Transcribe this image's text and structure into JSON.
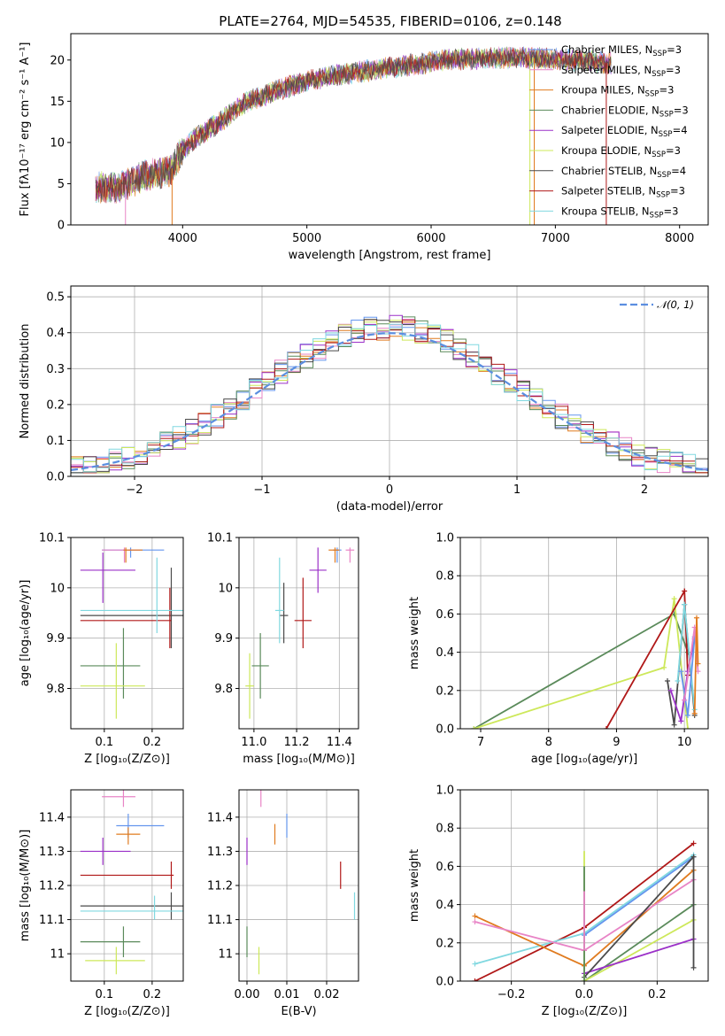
{
  "figure_title": "PLATE=2764, MJD=54535, FIBERID=0106, z=0.148",
  "colors": {
    "chabrier_miles": "#6495ed",
    "salpeter_miles": "#e884c6",
    "kroupa_miles": "#e07b1f",
    "chabrier_elodie": "#5a8a5a",
    "salpeter_elodie": "#9b30c8",
    "kroupa_elodie": "#cde85a",
    "chabrier_stelib": "#4a4a4a",
    "salpeter_stelib": "#b01818",
    "kroupa_stelib": "#80d8e0",
    "gaussian": "#5b8ee0",
    "grid": "#b0b0b0"
  },
  "chart_data": [
    {
      "id": "spectrum",
      "type": "line",
      "xlabel": "wavelength [Angstrom, rest frame]",
      "ylabel": "Flux [fλ10⁻¹⁷ erg cm⁻² s⁻¹ A⁻¹]",
      "xlim": [
        3100,
        8230
      ],
      "ylim": [
        0,
        23.2
      ],
      "xticks": [
        4000,
        5000,
        6000,
        7000,
        8000
      ],
      "yticks": [
        0,
        5,
        10,
        15,
        20
      ],
      "grid": false,
      "legend_placement": "top-right",
      "legend": [
        {
          "key": "chabrier_miles",
          "label": "Chabrier MILES, N",
          "sub": "SSP",
          "tail": "=3"
        },
        {
          "key": "salpeter_miles",
          "label": "Salpeter MILES, N",
          "sub": "SSP",
          "tail": "=3"
        },
        {
          "key": "kroupa_miles",
          "label": "Kroupa MILES, N",
          "sub": "SSP",
          "tail": "=3"
        },
        {
          "key": "chabrier_elodie",
          "label": "Chabrier ELODIE, N",
          "sub": "SSP",
          "tail": "=3"
        },
        {
          "key": "salpeter_elodie",
          "label": "Salpeter ELODIE, N",
          "sub": "SSP",
          "tail": "=4"
        },
        {
          "key": "kroupa_elodie",
          "label": "Kroupa ELODIE, N",
          "sub": "SSP",
          "tail": "=3"
        },
        {
          "key": "chabrier_stelib",
          "label": "Chabrier STELIB, N",
          "sub": "SSP",
          "tail": "=4"
        },
        {
          "key": "salpeter_stelib",
          "label": "Salpeter STELIB, N",
          "sub": "SSP",
          "tail": "=3"
        },
        {
          "key": "kroupa_stelib",
          "label": "Kroupa STELIB, N",
          "sub": "SSP",
          "tail": "=3"
        }
      ],
      "continuum": {
        "x": [
          3300,
          3500,
          3700,
          3900,
          4000,
          4100,
          4300,
          4500,
          4700,
          5000,
          5300,
          5600,
          5900,
          6100,
          6400,
          6700,
          7000,
          7300,
          7450
        ],
        "y": [
          4.5,
          4.6,
          6.0,
          6.5,
          9.0,
          10.5,
          12.5,
          14.8,
          16.0,
          17.5,
          18.3,
          19.0,
          19.5,
          20.0,
          20.2,
          20.3,
          20.1,
          19.8,
          19.6
        ]
      },
      "data_range": [
        3300,
        7450
      ],
      "drops": [
        {
          "x": 3540,
          "key": "salpeter_miles"
        },
        {
          "x": 3915,
          "key": "kroupa_miles"
        },
        {
          "x": 6795,
          "key": "kroupa_elodie"
        },
        {
          "x": 6830,
          "key": "kroupa_miles"
        },
        {
          "x": 7410,
          "key": "salpeter_stelib"
        }
      ]
    },
    {
      "id": "residuals",
      "type": "histogram",
      "xlabel": "(data-model)/error",
      "ylabel": "Normed distribution",
      "xlim": [
        -2.5,
        2.5
      ],
      "ylim": [
        0,
        0.53
      ],
      "xticks": [
        -2,
        -1,
        0,
        1,
        2
      ],
      "xtick_labels": [
        "−2",
        "−1",
        "0",
        "1",
        "2"
      ],
      "yticks": [
        0.0,
        0.1,
        0.2,
        0.3,
        0.4,
        0.5
      ],
      "ytick_labels": [
        "0.0",
        "0.1",
        "0.2",
        "0.3",
        "0.4",
        "0.5"
      ],
      "grid": true,
      "legend_placement": "top-right",
      "gaussian_label": "𝒩(0, 1)",
      "bin_width": 0.1
    },
    {
      "id": "age_vs_Z",
      "type": "scatter",
      "xlabel": "Z [log₁₀(Z/Z⊙)]",
      "ylabel": "age  [log₁₀(age/yr)]",
      "xlim": [
        0.03,
        0.265
      ],
      "ylim": [
        9.72,
        10.1
      ],
      "xticks": [
        0.1,
        0.2
      ],
      "yticks": [
        9.8,
        9.9,
        10.0,
        10.1
      ],
      "grid": true,
      "points": [
        {
          "key": "chabrier_miles",
          "x": 0.155,
          "xerr": [
            0.095,
            0.225
          ],
          "y": 10.075,
          "yerr": [
            10.06,
            10.08
          ]
        },
        {
          "key": "salpeter_miles",
          "x": 0.142,
          "xerr": [
            0.095,
            0.175
          ],
          "y": 10.075,
          "yerr": [
            10.05,
            10.08
          ]
        },
        {
          "key": "kroupa_miles",
          "x": 0.145,
          "xerr": [
            0.14,
            0.18
          ],
          "y": 10.075,
          "yerr": [
            10.05,
            10.08
          ]
        },
        {
          "key": "chabrier_elodie",
          "x": 0.14,
          "xerr": [
            0.05,
            0.175
          ],
          "y": 9.845,
          "yerr": [
            9.78,
            9.92
          ]
        },
        {
          "key": "salpeter_elodie",
          "x": 0.097,
          "xerr": [
            0.05,
            0.165
          ],
          "y": 10.035,
          "yerr": [
            9.97,
            10.07
          ]
        },
        {
          "key": "kroupa_elodie",
          "x": 0.125,
          "xerr": [
            0.05,
            0.185
          ],
          "y": 9.805,
          "yerr": [
            9.74,
            9.89
          ]
        },
        {
          "key": "chabrier_stelib",
          "x": 0.24,
          "xerr": [
            0.05,
            0.265
          ],
          "y": 9.945,
          "yerr": [
            9.88,
            10.04
          ]
        },
        {
          "key": "salpeter_stelib",
          "x": 0.237,
          "xerr": [
            0.05,
            0.24
          ],
          "y": 9.935,
          "yerr": [
            9.88,
            10.0
          ]
        },
        {
          "key": "kroupa_stelib",
          "x": 0.21,
          "xerr": [
            0.05,
            0.265
          ],
          "y": 9.955,
          "yerr": [
            9.91,
            10.06
          ]
        }
      ]
    },
    {
      "id": "age_vs_mass",
      "type": "scatter",
      "xlabel": "mass [log₁₀(M/M⊙)]",
      "ylabel": "",
      "xlim": [
        10.93,
        11.49
      ],
      "ylim": [
        9.72,
        10.1
      ],
      "xticks": [
        11.0,
        11.2,
        11.4
      ],
      "xtick_labels": [
        "11.0",
        "11.2",
        "11.4"
      ],
      "yticks": [
        9.8,
        9.9,
        10.0,
        10.1
      ],
      "grid": true,
      "points": [
        {
          "key": "chabrier_miles",
          "x": 11.39,
          "xerr": [
            11.37,
            11.41
          ],
          "y": 10.075,
          "yerr": [
            10.05,
            10.08
          ]
        },
        {
          "key": "salpeter_miles",
          "x": 11.45,
          "xerr": [
            11.43,
            11.47
          ],
          "y": 10.075,
          "yerr": [
            10.05,
            10.08
          ]
        },
        {
          "key": "kroupa_miles",
          "x": 11.38,
          "xerr": [
            11.35,
            11.4
          ],
          "y": 10.075,
          "yerr": [
            10.05,
            10.08
          ]
        },
        {
          "key": "chabrier_elodie",
          "x": 11.03,
          "xerr": [
            10.99,
            11.07
          ],
          "y": 9.845,
          "yerr": [
            9.78,
            9.91
          ]
        },
        {
          "key": "salpeter_elodie",
          "x": 11.3,
          "xerr": [
            11.26,
            11.34
          ],
          "y": 10.035,
          "yerr": [
            9.99,
            10.08
          ]
        },
        {
          "key": "kroupa_elodie",
          "x": 10.98,
          "xerr": [
            10.96,
            11.0
          ],
          "y": 9.805,
          "yerr": [
            9.74,
            9.87
          ]
        },
        {
          "key": "chabrier_stelib",
          "x": 11.14,
          "xerr": [
            11.12,
            11.16
          ],
          "y": 9.945,
          "yerr": [
            9.89,
            10.01
          ]
        },
        {
          "key": "salpeter_stelib",
          "x": 11.23,
          "xerr": [
            11.19,
            11.27
          ],
          "y": 9.935,
          "yerr": [
            9.88,
            10.02
          ]
        },
        {
          "key": "kroupa_stelib",
          "x": 11.12,
          "xerr": [
            11.1,
            11.14
          ],
          "y": 9.955,
          "yerr": [
            9.89,
            10.06
          ]
        }
      ]
    },
    {
      "id": "massweight_vs_age",
      "type": "line",
      "xlabel": "age  [log₁₀(age/yr)]",
      "ylabel": "mass weight",
      "xlim": [
        6.7,
        10.35
      ],
      "ylim": [
        0,
        1.0
      ],
      "xticks": [
        7,
        8,
        9,
        10
      ],
      "yticks": [
        0.0,
        0.2,
        0.4,
        0.6,
        0.8,
        1.0
      ],
      "ytick_labels": [
        "0.0",
        "0.2",
        "0.4",
        "0.6",
        "0.8",
        "1.0"
      ],
      "grid": true,
      "series": [
        {
          "key": "chabrier_elodie",
          "x": [
            6.9,
            9.85,
            10.05
          ],
          "y": [
            0.0,
            0.6,
            0.4
          ]
        },
        {
          "key": "kroupa_elodie",
          "x": [
            6.9,
            9.7,
            9.85,
            10.05
          ],
          "y": [
            0.0,
            0.32,
            0.68,
            0.0
          ]
        },
        {
          "key": "salpeter_stelib",
          "x": [
            8.85,
            10.0,
            10.05
          ],
          "y": [
            0.0,
            0.72,
            0.28
          ]
        },
        {
          "key": "chabrier_stelib",
          "x": [
            9.75,
            9.85,
            10.0,
            10.15
          ],
          "y": [
            0.25,
            0.02,
            0.65,
            0.07
          ]
        },
        {
          "key": "salpeter_elodie",
          "x": [
            9.8,
            9.95,
            10.05,
            10.15
          ],
          "y": [
            0.2,
            0.04,
            0.3,
            0.47
          ]
        },
        {
          "key": "kroupa_stelib",
          "x": [
            9.9,
            10.0,
            10.15
          ],
          "y": [
            0.25,
            0.65,
            0.1
          ]
        },
        {
          "key": "chabrier_miles",
          "x": [
            9.95,
            10.05,
            10.15
          ],
          "y": [
            0.3,
            0.07,
            0.48
          ]
        },
        {
          "key": "salpeter_miles",
          "x": [
            10.0,
            10.15,
            10.2
          ],
          "y": [
            0.15,
            0.53,
            0.3
          ]
        },
        {
          "key": "kroupa_miles",
          "x": [
            10.15,
            10.18,
            10.2
          ],
          "y": [
            0.08,
            0.58,
            0.34
          ]
        }
      ]
    },
    {
      "id": "mass_vs_Z",
      "type": "scatter",
      "xlabel": "Z [log₁₀(Z/Z⊙)]",
      "ylabel": "mass [log₁₀(M/M⊙)]",
      "xlim": [
        0.03,
        0.265
      ],
      "ylim": [
        10.92,
        11.48
      ],
      "xticks": [
        0.1,
        0.2
      ],
      "yticks": [
        11.0,
        11.1,
        11.2,
        11.3,
        11.4
      ],
      "grid": true,
      "points": [
        {
          "key": "chabrier_miles",
          "x": 0.15,
          "xerr": [
            0.125,
            0.225
          ],
          "y": 11.375,
          "yerr": [
            11.34,
            11.41
          ]
        },
        {
          "key": "salpeter_miles",
          "x": 0.14,
          "xerr": [
            0.095,
            0.165
          ],
          "y": 11.46,
          "yerr": [
            11.43,
            11.48
          ]
        },
        {
          "key": "kroupa_miles",
          "x": 0.15,
          "xerr": [
            0.125,
            0.175
          ],
          "y": 11.35,
          "yerr": [
            11.32,
            11.37
          ]
        },
        {
          "key": "chabrier_elodie",
          "x": 0.14,
          "xerr": [
            0.05,
            0.175
          ],
          "y": 11.035,
          "yerr": [
            10.99,
            11.08
          ]
        },
        {
          "key": "salpeter_elodie",
          "x": 0.097,
          "xerr": [
            0.05,
            0.155
          ],
          "y": 11.3,
          "yerr": [
            11.26,
            11.34
          ]
        },
        {
          "key": "kroupa_elodie",
          "x": 0.125,
          "xerr": [
            0.06,
            0.185
          ],
          "y": 10.98,
          "yerr": [
            10.94,
            11.02
          ]
        },
        {
          "key": "chabrier_stelib",
          "x": 0.24,
          "xerr": [
            0.05,
            0.265
          ],
          "y": 11.14,
          "yerr": [
            11.1,
            11.18
          ]
        },
        {
          "key": "salpeter_stelib",
          "x": 0.24,
          "xerr": [
            0.05,
            0.245
          ],
          "y": 11.23,
          "yerr": [
            11.19,
            11.27
          ]
        },
        {
          "key": "kroupa_stelib",
          "x": 0.205,
          "xerr": [
            0.05,
            0.265
          ],
          "y": 11.125,
          "yerr": [
            11.1,
            11.17
          ]
        }
      ]
    },
    {
      "id": "mass_vs_ebv",
      "type": "scatter",
      "xlabel": "E(B-V)",
      "ylabel": "",
      "xlim": [
        -0.002,
        0.028
      ],
      "ylim": [
        10.92,
        11.48
      ],
      "xticks": [
        0.0,
        0.01,
        0.02
      ],
      "xtick_labels": [
        "0.00",
        "0.01",
        "0.02"
      ],
      "yticks": [
        11.0,
        11.1,
        11.2,
        11.3,
        11.4
      ],
      "grid": true,
      "points": [
        {
          "key": "chabrier_miles",
          "x": 0.01,
          "y": 11.38,
          "yerr": [
            11.34,
            11.41
          ]
        },
        {
          "key": "salpeter_miles",
          "x": 0.0035,
          "y": 11.46,
          "yerr": [
            11.43,
            11.48
          ]
        },
        {
          "key": "kroupa_miles",
          "x": 0.007,
          "y": 11.35,
          "yerr": [
            11.32,
            11.38
          ]
        },
        {
          "key": "chabrier_elodie",
          "x": 0.0,
          "y": 11.035,
          "yerr": [
            10.99,
            11.08
          ]
        },
        {
          "key": "salpeter_elodie",
          "x": 0.0,
          "y": 11.3,
          "yerr": [
            11.26,
            11.34
          ]
        },
        {
          "key": "kroupa_elodie",
          "x": 0.003,
          "y": 10.98,
          "yerr": [
            10.94,
            11.02
          ]
        },
        {
          "key": "salpeter_stelib",
          "x": 0.0235,
          "y": 11.23,
          "yerr": [
            11.19,
            11.27
          ]
        },
        {
          "key": "kroupa_stelib",
          "x": 0.027,
          "y": 11.14,
          "yerr": [
            11.1,
            11.18
          ]
        }
      ]
    },
    {
      "id": "massweight_vs_Z",
      "type": "line",
      "xlabel": "Z [log₁₀(Z/Z⊙)]",
      "ylabel": "mass weight",
      "xlim": [
        -0.34,
        0.34
      ],
      "ylim": [
        0,
        1.0
      ],
      "xticks": [
        -0.2,
        0.0,
        0.2
      ],
      "xtick_labels": [
        "−0.2",
        "0.0",
        "0.2"
      ],
      "yticks": [
        0.0,
        0.2,
        0.4,
        0.6,
        0.8,
        1.0
      ],
      "ytick_labels": [
        "0.0",
        "0.2",
        "0.4",
        "0.6",
        "0.8",
        "1.0"
      ],
      "grid": true,
      "series": [
        {
          "key": "salpeter_stelib",
          "x": [
            -0.3,
            0.0,
            0.3
          ],
          "y": [
            0.0,
            0.28,
            0.72
          ]
        },
        {
          "key": "kroupa_stelib",
          "x": [
            -0.3,
            0.0,
            0.3
          ],
          "y": [
            0.09,
            0.25,
            0.66
          ]
        },
        {
          "key": "chabrier_miles",
          "x": [
            0.0,
            0.3
          ],
          "y": [
            0.24,
            0.65
          ]
        },
        {
          "key": "kroupa_miles",
          "x": [
            -0.3,
            0.0,
            0.3
          ],
          "y": [
            0.34,
            0.08,
            0.58
          ]
        },
        {
          "key": "salpeter_miles",
          "x": [
            -0.3,
            0.0,
            0.3
          ],
          "y": [
            0.31,
            0.16,
            0.53
          ]
        },
        {
          "key": "chabrier_elodie",
          "x": [
            0.0,
            0.3
          ],
          "y": [
            0.0,
            0.4
          ]
        },
        {
          "key": "kroupa_elodie",
          "x": [
            0.0,
            0.3
          ],
          "y": [
            0.0,
            0.32
          ]
        },
        {
          "key": "salpeter_elodie",
          "x": [
            0.0,
            0.3
          ],
          "y": [
            0.04,
            0.22
          ]
        },
        {
          "key": "chabrier_stelib",
          "x": [
            0.0,
            0.3,
            0.3
          ],
          "y": [
            0.02,
            0.65,
            0.07
          ]
        }
      ],
      "vertical_marks": [
        {
          "key": "kroupa_elodie",
          "x": 0.0,
          "y": [
            0.0,
            0.68
          ]
        },
        {
          "key": "chabrier_elodie",
          "x": 0.0,
          "y": [
            0.0,
            0.6
          ]
        },
        {
          "key": "salpeter_miles",
          "x": 0.0,
          "y": [
            0.16,
            0.47
          ]
        }
      ]
    }
  ]
}
